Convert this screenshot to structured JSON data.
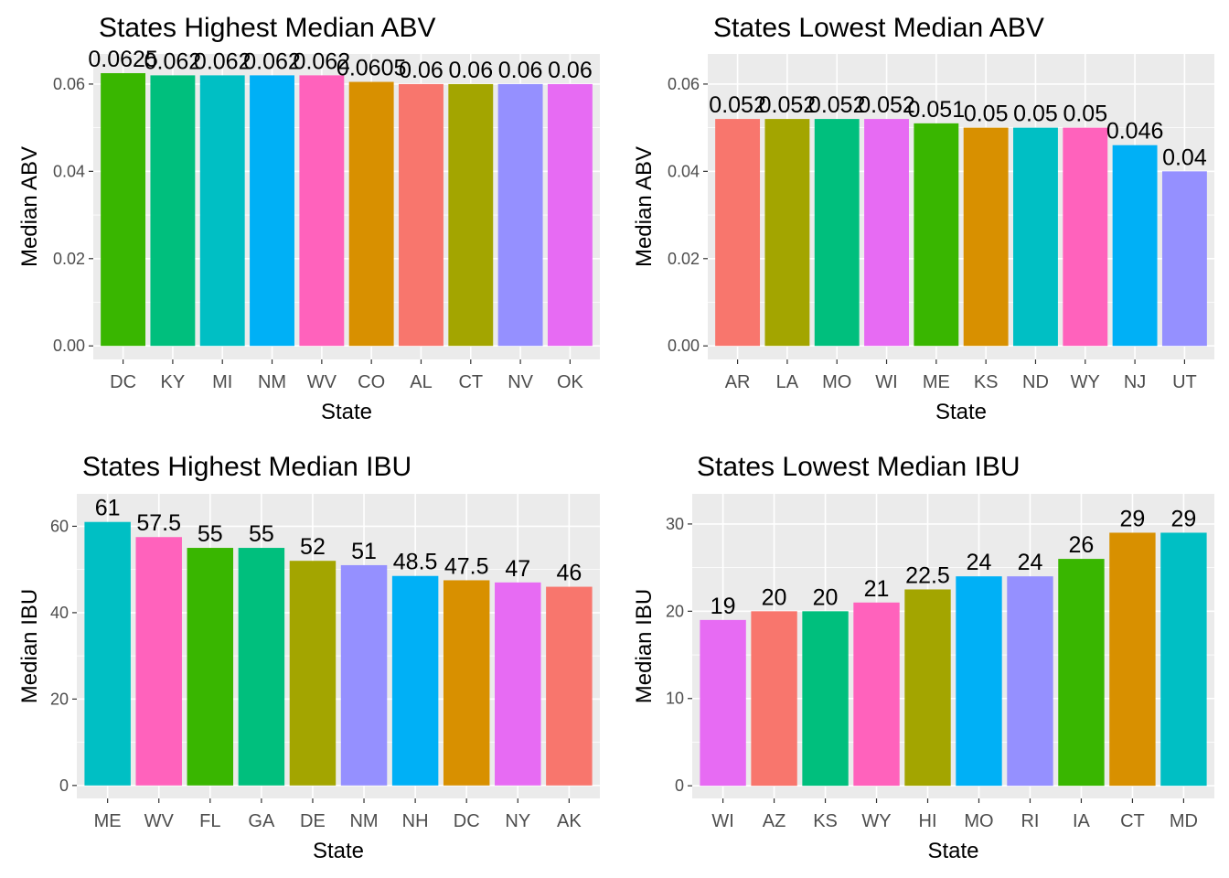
{
  "chart_data": [
    {
      "type": "bar",
      "title": "States Highest Median ABV",
      "xlabel": "State",
      "ylabel": "Median ABV",
      "categories": [
        "DC",
        "KY",
        "MI",
        "NM",
        "WV",
        "CO",
        "AL",
        "CT",
        "NV",
        "OK"
      ],
      "values": [
        0.0625,
        0.062,
        0.062,
        0.062,
        0.062,
        0.0605,
        0.06,
        0.06,
        0.06,
        0.06
      ],
      "labels": [
        "0.0625",
        "0.062",
        "0.062",
        "0.062",
        "0.062",
        "0.0605",
        "0.06",
        "0.06",
        "0.06",
        "0.06"
      ],
      "colors": [
        "#39B600",
        "#00BF7D",
        "#00BFC4",
        "#00B0F6",
        "#FF62BC",
        "#D89000",
        "#F8766D",
        "#A3A500",
        "#9590FF",
        "#E76BF3"
      ],
      "ylim": [
        -0.0031,
        0.0669
      ],
      "yticks": [
        0,
        0.02,
        0.04,
        0.06
      ],
      "ytick_labels": [
        "0.00",
        "0.02",
        "0.04",
        "0.06"
      ],
      "grid": true,
      "legend": "none"
    },
    {
      "type": "bar",
      "title": "States Lowest Median ABV",
      "xlabel": "State",
      "ylabel": "Median ABV",
      "categories": [
        "AR",
        "LA",
        "MO",
        "WI",
        "ME",
        "KS",
        "ND",
        "WY",
        "NJ",
        "UT"
      ],
      "values": [
        0.052,
        0.052,
        0.052,
        0.052,
        0.051,
        0.05,
        0.05,
        0.05,
        0.046,
        0.04
      ],
      "labels": [
        "0.052",
        "0.052",
        "0.052",
        "0.052",
        "0.051",
        "0.05",
        "0.05",
        "0.05",
        "0.046",
        "0.04"
      ],
      "colors": [
        "#F8766D",
        "#A3A500",
        "#00BF7D",
        "#E76BF3",
        "#39B600",
        "#D89000",
        "#00BFC4",
        "#FF62BC",
        "#00B0F6",
        "#9590FF"
      ],
      "ylim": [
        -0.0031,
        0.0669
      ],
      "yticks": [
        0,
        0.02,
        0.04,
        0.06
      ],
      "ytick_labels": [
        "0.00",
        "0.02",
        "0.04",
        "0.06"
      ],
      "grid": true,
      "legend": "none"
    },
    {
      "type": "bar",
      "title": "States Highest Median IBU",
      "xlabel": "State",
      "ylabel": "Median IBU",
      "categories": [
        "ME",
        "WV",
        "FL",
        "GA",
        "DE",
        "NM",
        "NH",
        "DC",
        "NY",
        "AK"
      ],
      "values": [
        61,
        57.5,
        55,
        55,
        52,
        51,
        48.5,
        47.5,
        47,
        46
      ],
      "labels": [
        "61",
        "57.5",
        "55",
        "55",
        "52",
        "51",
        "48.5",
        "47.5",
        "47",
        "46"
      ],
      "colors": [
        "#00BFC4",
        "#FF62BC",
        "#39B600",
        "#00BF7D",
        "#A3A500",
        "#9590FF",
        "#00B0F6",
        "#D89000",
        "#E76BF3",
        "#F8766D"
      ],
      "ylim": [
        -3,
        67.5
      ],
      "yticks": [
        0,
        20,
        40,
        60
      ],
      "ytick_labels": [
        "0",
        "20",
        "40",
        "60"
      ],
      "grid": true,
      "legend": "none"
    },
    {
      "type": "bar",
      "title": "States Lowest Median IBU",
      "xlabel": "State",
      "ylabel": "Median IBU",
      "categories": [
        "WI",
        "AZ",
        "KS",
        "WY",
        "HI",
        "MO",
        "RI",
        "IA",
        "CT",
        "MD"
      ],
      "values": [
        19,
        20,
        20,
        21,
        22.5,
        24,
        24,
        26,
        29,
        29
      ],
      "labels": [
        "19",
        "20",
        "20",
        "21",
        "22.5",
        "24",
        "24",
        "26",
        "29",
        "29"
      ],
      "colors": [
        "#E76BF3",
        "#F8766D",
        "#00BF7D",
        "#FF62BC",
        "#A3A500",
        "#00B0F6",
        "#9590FF",
        "#39B600",
        "#D89000",
        "#00BFC4"
      ],
      "ylim": [
        -1.45,
        33.45
      ],
      "yticks": [
        0,
        10,
        20,
        30
      ],
      "ytick_labels": [
        "0",
        "10",
        "20",
        "30"
      ],
      "grid": true,
      "legend": "none"
    }
  ]
}
